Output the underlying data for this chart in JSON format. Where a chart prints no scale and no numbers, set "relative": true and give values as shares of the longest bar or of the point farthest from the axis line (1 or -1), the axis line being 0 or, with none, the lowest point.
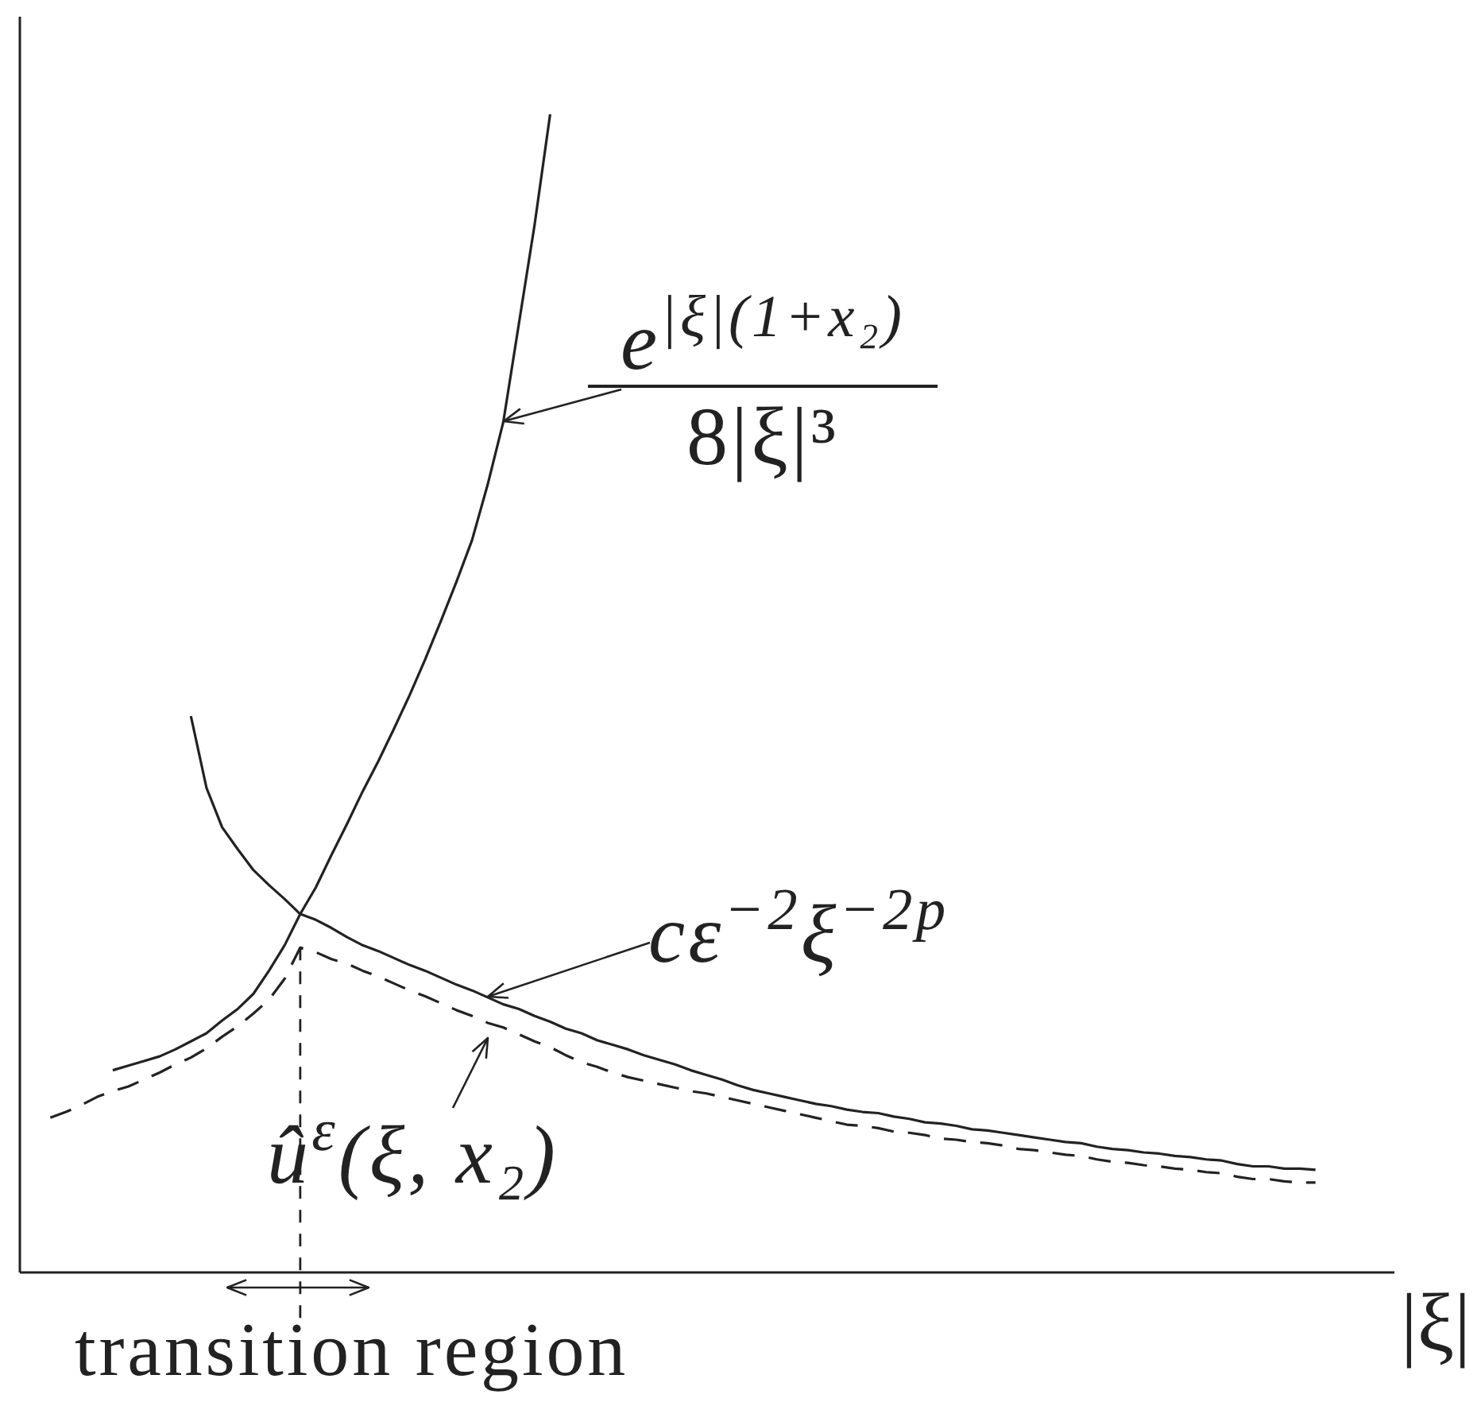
{
  "chart_data": {
    "type": "line",
    "relative": true,
    "xlabel": "|ξ|",
    "categories": [
      null,
      null,
      null,
      null,
      null,
      null,
      null,
      null,
      null,
      null,
      null,
      null,
      null,
      null,
      null,
      null,
      null,
      null,
      null,
      null,
      null,
      null,
      null,
      null,
      null,
      null,
      null,
      null,
      null,
      null,
      null,
      null,
      null,
      null,
      null,
      null,
      null,
      null,
      null,
      null,
      null,
      null,
      null,
      null,
      null,
      null,
      null,
      null,
      null,
      null,
      null,
      null,
      null,
      null,
      null,
      null,
      null,
      null,
      null,
      null,
      null,
      null,
      null,
      null,
      null,
      null,
      null,
      null,
      null,
      null,
      null,
      null,
      null,
      null,
      null,
      null,
      null,
      null,
      null,
      null,
      null,
      null,
      null,
      null,
      null,
      null,
      null,
      null,
      null
    ],
    "series": [
      {
        "color": "#222222",
        "values": [
          null,
          null,
          null,
          null,
          null,
          null,
          0.174,
          0.178,
          0.182,
          0.186,
          0.192,
          0.199,
          0.206,
          0.217,
          0.227,
          0.24,
          0.26,
          0.282,
          0.309,
          0.332,
          0.36,
          0.387,
          0.415,
          0.441,
          0.469,
          0.498,
          0.529,
          0.562,
          0.596,
          0.632,
          0.68,
          0.734,
          0.819,
          0.904,
          1.0,
          null,
          null,
          null,
          null,
          null,
          null,
          null,
          null,
          null,
          null,
          null,
          null,
          null,
          null,
          null,
          null,
          null,
          null,
          null,
          null,
          null,
          null,
          null,
          null,
          null,
          null,
          null,
          null,
          null,
          null,
          null,
          null,
          null,
          null,
          null,
          null,
          null,
          null,
          null,
          null,
          null,
          null,
          null,
          null,
          null,
          null,
          null,
          null,
          null,
          null,
          null,
          null,
          null,
          null
        ]
      },
      {
        "color": "#222222",
        "values": [
          null,
          null,
          null,
          null,
          null,
          null,
          null,
          null,
          null,
          null,
          null,
          0.48,
          0.418,
          0.384,
          0.365,
          0.347,
          0.334,
          0.322,
          0.309,
          0.304,
          0.297,
          0.289,
          0.282,
          0.277,
          0.271,
          0.265,
          0.26,
          0.254,
          0.248,
          0.243,
          0.237,
          0.231,
          0.227,
          0.221,
          0.216,
          0.21,
          0.206,
          0.2,
          0.196,
          0.192,
          0.187,
          0.183,
          0.179,
          0.174,
          0.17,
          0.166,
          0.161,
          0.157,
          0.154,
          0.151,
          0.148,
          0.145,
          0.143,
          0.14,
          0.138,
          0.137,
          0.134,
          0.132,
          0.129,
          0.128,
          0.126,
          0.123,
          0.122,
          0.12,
          0.118,
          0.116,
          0.114,
          0.112,
          0.111,
          0.108,
          0.106,
          0.105,
          0.103,
          0.102,
          0.1,
          0.099,
          0.097,
          0.096,
          0.093,
          0.091,
          0.091,
          0.089,
          0.089,
          0.088,
          null,
          null,
          null,
          null,
          null
        ]
      },
      {
        "color": "#222222",
        "line_style": "dashed",
        "values": [
          null,
          null,
          0.133,
          0.138,
          0.144,
          0.151,
          0.156,
          0.16,
          0.166,
          0.172,
          0.179,
          0.185,
          0.193,
          0.203,
          0.212,
          0.223,
          0.235,
          0.253,
          0.28,
          0.276,
          0.27,
          0.266,
          0.26,
          0.255,
          0.249,
          0.243,
          0.238,
          0.232,
          0.226,
          0.221,
          0.215,
          0.211,
          0.205,
          0.199,
          0.194,
          0.187,
          0.181,
          0.177,
          0.172,
          0.168,
          0.165,
          0.162,
          0.159,
          0.156,
          0.154,
          0.151,
          0.148,
          0.145,
          0.142,
          0.139,
          0.136,
          0.133,
          0.13,
          0.127,
          0.126,
          0.124,
          0.121,
          0.12,
          0.118,
          0.115,
          0.114,
          0.112,
          0.111,
          0.109,
          0.106,
          0.105,
          0.103,
          0.101,
          0.1,
          0.097,
          0.095,
          0.094,
          0.092,
          0.091,
          0.089,
          0.088,
          0.086,
          0.085,
          0.082,
          0.08,
          0.08,
          0.078,
          0.077,
          0.077,
          null,
          null,
          null,
          null,
          null
        ]
      }
    ],
    "annotations": [
      "e$^{|ξ|(1+x₂)}$",
      "8|ξ|³",
      "cε$^{−2}$ξ$^{−2p}$",
      "û$^{ε}$(ξ, x₂)",
      "transition region"
    ]
  }
}
